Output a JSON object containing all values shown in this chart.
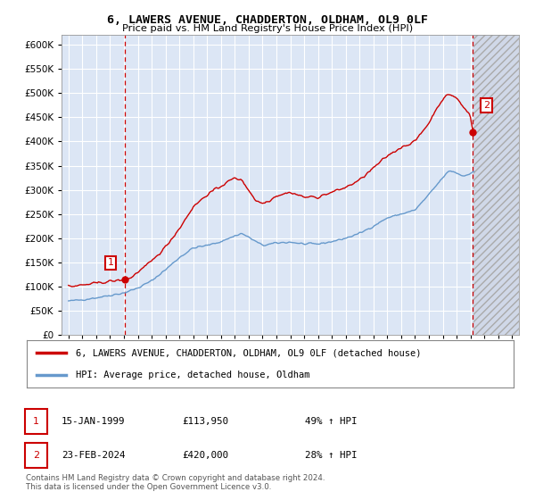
{
  "title": "6, LAWERS AVENUE, CHADDERTON, OLDHAM, OL9 0LF",
  "subtitle": "Price paid vs. HM Land Registry's House Price Index (HPI)",
  "legend_line1": "6, LAWERS AVENUE, CHADDERTON, OLDHAM, OL9 0LF (detached house)",
  "legend_line2": "HPI: Average price, detached house, Oldham",
  "footnote": "Contains HM Land Registry data © Crown copyright and database right 2024.\nThis data is licensed under the Open Government Licence v3.0.",
  "point1_date": "15-JAN-1999",
  "point1_price": "£113,950",
  "point1_hpi": "49% ↑ HPI",
  "point2_date": "23-FEB-2024",
  "point2_price": "£420,000",
  "point2_hpi": "28% ↑ HPI",
  "bg_color": "#ffffff",
  "plot_bg_color": "#dce6f5",
  "grid_color": "#ffffff",
  "red_color": "#cc0000",
  "blue_color": "#6699cc",
  "ylim_min": 0,
  "ylim_max": 620000,
  "yticks": [
    0,
    50000,
    100000,
    150000,
    200000,
    250000,
    300000,
    350000,
    400000,
    450000,
    500000,
    550000,
    600000
  ],
  "xlim_min": 1994.5,
  "xlim_max": 2027.5,
  "hatch_start": 2024.25,
  "hatch_end": 2027.5,
  "point1_x": 1999.04,
  "point1_y": 113950,
  "point2_x": 2024.15,
  "point2_y": 420000
}
